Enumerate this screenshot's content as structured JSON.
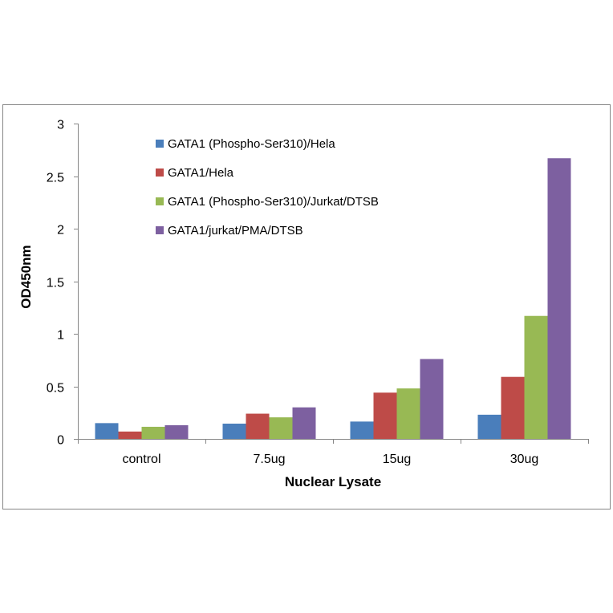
{
  "chart_data": {
    "type": "bar",
    "title": "",
    "xlabel": "Nuclear Lysate",
    "ylabel": "OD450nm",
    "categories": [
      "control",
      "7.5ug",
      "15ug",
      "30ug"
    ],
    "ylim": [
      0,
      3
    ],
    "yticks": [
      "0",
      "0.5",
      "1",
      "1.5",
      "2",
      "2.5",
      "3"
    ],
    "ytick_values": [
      0,
      0.5,
      1,
      1.5,
      2,
      2.5,
      3
    ],
    "grid": false,
    "legend_position": "top-left",
    "series": [
      {
        "name": "GATA1 (Phospho-Ser310)/Hela",
        "color": "#4a7ebb",
        "values": [
          0.15,
          0.145,
          0.165,
          0.23
        ]
      },
      {
        "name": "GATA1/Hela",
        "color": "#be4b48",
        "values": [
          0.07,
          0.24,
          0.44,
          0.59
        ]
      },
      {
        "name": "GATA1 (Phospho-Ser310)/Jurkat/DTSB",
        "color": "#98b954",
        "values": [
          0.115,
          0.205,
          0.48,
          1.17
        ]
      },
      {
        "name": "GATA1/jurkat/PMA/DTSB",
        "color": "#7d60a0",
        "values": [
          0.13,
          0.3,
          0.76,
          2.67
        ]
      }
    ]
  }
}
